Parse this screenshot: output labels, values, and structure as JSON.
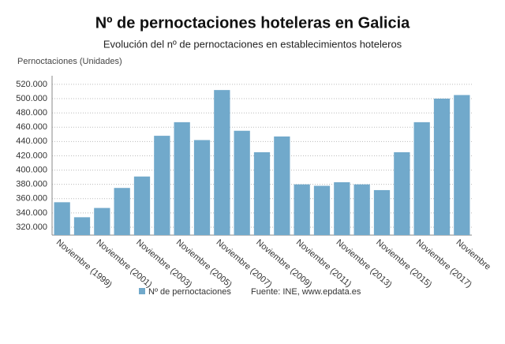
{
  "chart_data": {
    "type": "bar",
    "title": "Nº de pernoctaciones hoteleras en Galicia",
    "subtitle": "Evolución del nº de pernoctaciones en establecimientos hoteleros",
    "y_axis_title": "Pernoctaciones (Unidades)",
    "source": "Fuente: INE, www.epdata.es",
    "categories": [
      "Noviembre (1999)",
      null,
      "Noviembre (2001)",
      null,
      "Noviembre (2003)",
      null,
      "Noviembre (2005)",
      null,
      "Noviembre (2007)",
      null,
      "Noviembre (2009)",
      null,
      "Noviembre (2011)",
      null,
      "Noviembre (2013)",
      null,
      "Noviembre (2015)",
      null,
      "Noviembre (2017)",
      null,
      "Noviembre"
    ],
    "series": [
      {
        "name": "Nº de pernoctaciones",
        "color": "#71a9cb",
        "values": [
          355000,
          334000,
          347000,
          375000,
          391000,
          448000,
          467000,
          442000,
          512000,
          455000,
          425000,
          447000,
          380000,
          378000,
          383000,
          380000,
          372000,
          425000,
          467000,
          500000,
          505000
        ]
      }
    ],
    "ylim": [
      309000,
      532000
    ],
    "yticks": [
      {
        "value": 320000,
        "label": "320.000"
      },
      {
        "value": 340000,
        "label": "340.000"
      },
      {
        "value": 360000,
        "label": "360.000"
      },
      {
        "value": 380000,
        "label": "380.000"
      },
      {
        "value": 400000,
        "label": "400.000"
      },
      {
        "value": 420000,
        "label": "420.000"
      },
      {
        "value": 440000,
        "label": "440.000"
      },
      {
        "value": 460000,
        "label": "460.000"
      },
      {
        "value": 480000,
        "label": "480.000"
      },
      {
        "value": 500000,
        "label": "500.000"
      },
      {
        "value": 520000,
        "label": "520.000"
      }
    ],
    "grid": true
  }
}
